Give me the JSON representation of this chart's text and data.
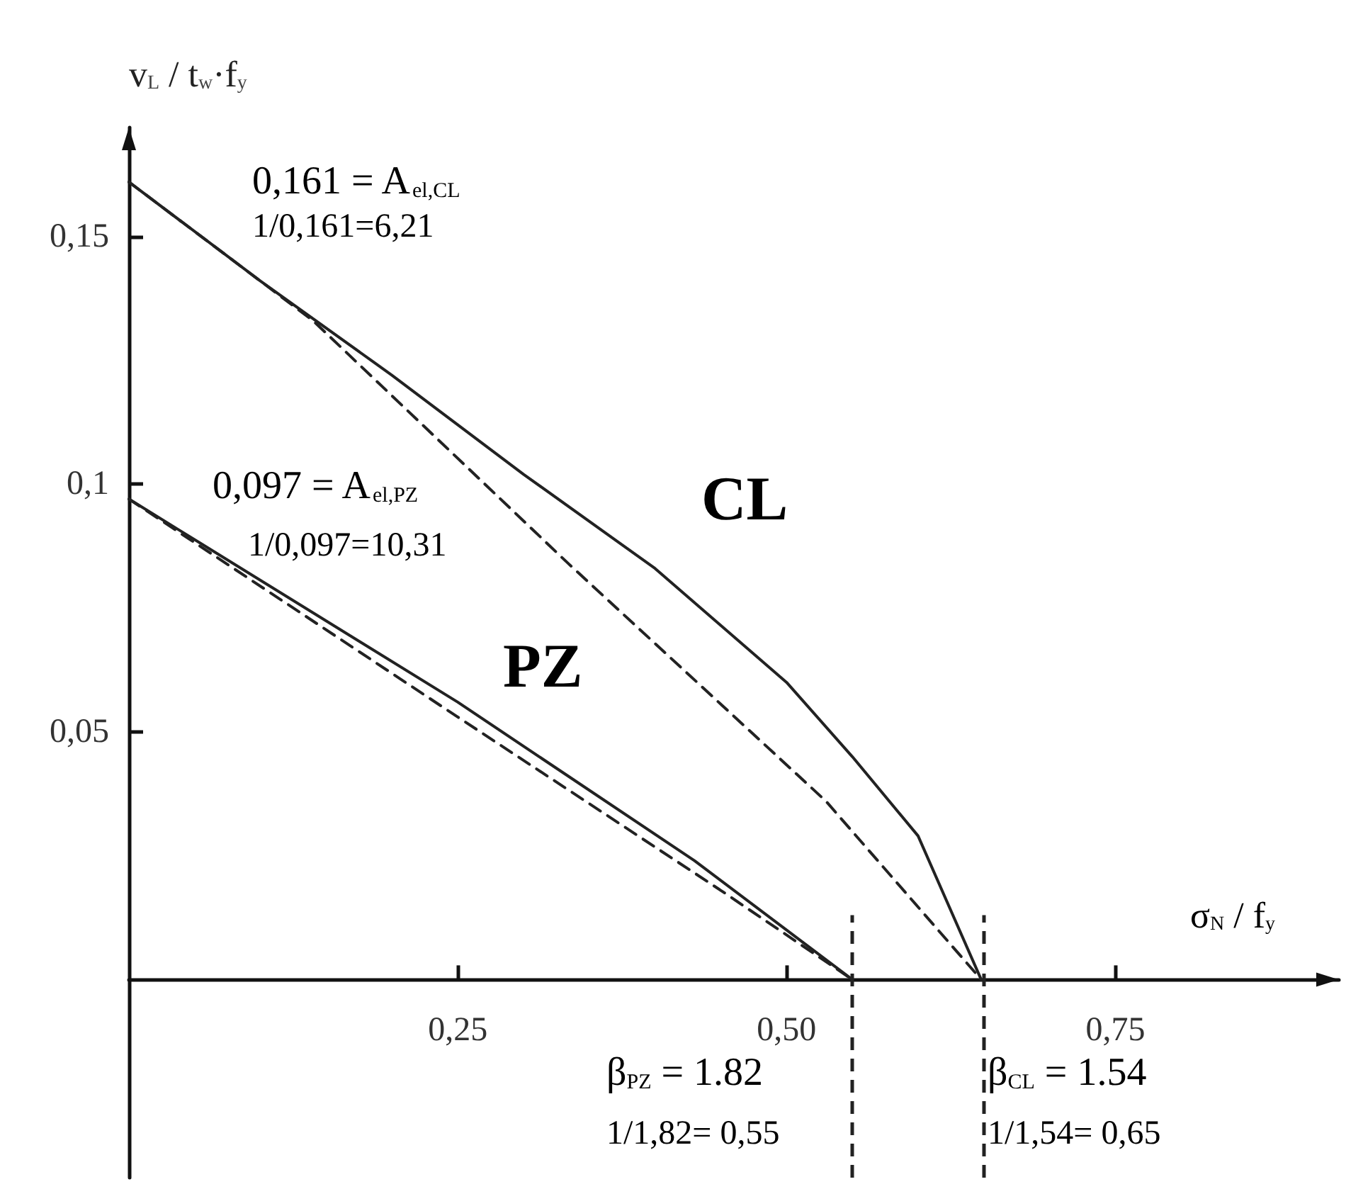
{
  "chart_data": {
    "type": "line",
    "xlabel": "σ$_{N}$ / f$_{y}$",
    "ylabel": "v$_{L}$ / t$_{w}$·f$_{y}$",
    "xlim": [
      0,
      0.92
    ],
    "ylim": [
      -0.04,
      0.172
    ],
    "xticks": [
      {
        "value": 0.25,
        "label": "0,25"
      },
      {
        "value": 0.5,
        "label": "0,50"
      },
      {
        "value": 0.75,
        "label": "0,75"
      }
    ],
    "yticks": [
      {
        "value": 0.05,
        "label": "0,05"
      },
      {
        "value": 0.1,
        "label": "0,1"
      },
      {
        "value": 0.15,
        "label": "0,15"
      }
    ],
    "marker": "none",
    "grid": false,
    "series": [
      {
        "color": "#222222",
        "line_style": "solid",
        "x": [
          0,
          0.1,
          0.2,
          0.3,
          0.4,
          0.5,
          0.55,
          0.6,
          0.648
        ],
        "values": [
          0.161,
          0.141,
          0.122,
          0.102,
          0.083,
          0.06,
          0.045,
          0.029,
          0
        ]
      },
      {
        "color": "#222222",
        "line_style": "dashed",
        "x": [
          0,
          0.14,
          0.334,
          0.53,
          0.648
        ],
        "values": [
          0.161,
          0.133,
          0.084,
          0.036,
          0
        ]
      },
      {
        "color": "#222222",
        "line_style": "solid",
        "x": [
          0,
          0.25,
          0.43,
          0.55
        ],
        "values": [
          0.097,
          0.056,
          0.024,
          0
        ]
      },
      {
        "color": "#222222",
        "line_style": "dashed",
        "x": [
          0,
          0.25,
          0.45,
          0.55
        ],
        "values": [
          0.097,
          0.053,
          0.018,
          0
        ]
      }
    ],
    "ref_lines": [
      {
        "axis": "x",
        "value": 0.55,
        "line_style": "dashed",
        "color": "#222222"
      },
      {
        "axis": "x",
        "value": 0.65,
        "line_style": "dashed",
        "color": "#222222"
      }
    ],
    "annotations": [
      "0,161 = A$_{el,CL}$",
      "1/0,161=6,21",
      "0,097 = A$_{el,PZ}$",
      "1/0,097=10,31",
      "CL",
      "PZ",
      "β$_{PZ}$ = 1.82",
      "1/1,82= 0,55",
      "β$_{CL}$ = 1.54",
      "1/1,54= 0,65"
    ]
  }
}
